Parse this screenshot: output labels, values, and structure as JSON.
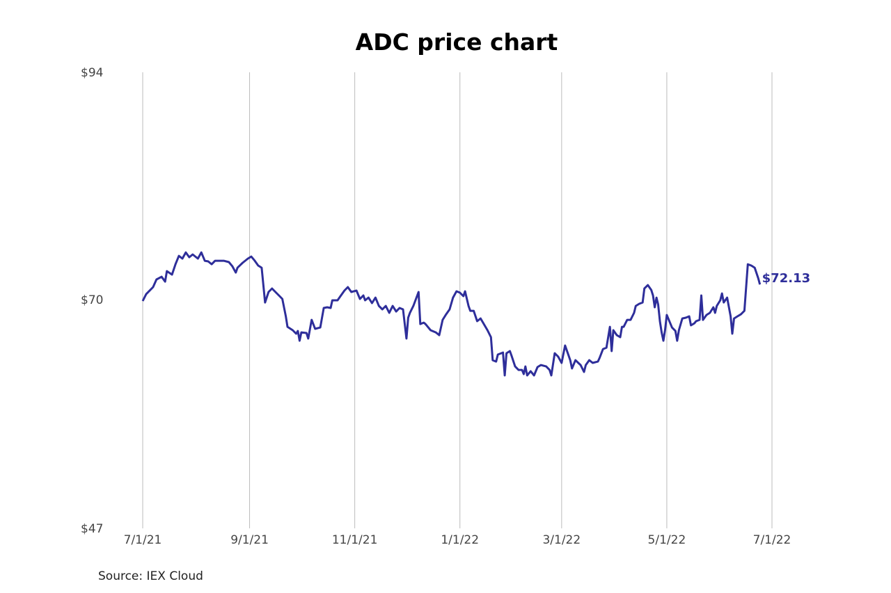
{
  "chart_data": {
    "type": "line",
    "title": "ADC price chart",
    "source": "Source: IEX Cloud",
    "xlabel": "",
    "ylabel": "",
    "x_unit": "days since 7/1/21",
    "xlim": [
      0,
      365
    ],
    "ylim": [
      47,
      94
    ],
    "grid": "vertical",
    "y_ticks": [
      {
        "value": 94,
        "label": "$94"
      },
      {
        "value": 70,
        "label": "$70"
      },
      {
        "value": 47,
        "label": "$47"
      }
    ],
    "x_ticks": [
      {
        "value": 0,
        "label": "7/1/21"
      },
      {
        "value": 62,
        "label": "9/1/21"
      },
      {
        "value": 123,
        "label": "11/1/21"
      },
      {
        "value": 184,
        "label": "1/1/22"
      },
      {
        "value": 243,
        "label": "3/1/22"
      },
      {
        "value": 304,
        "label": "5/1/22"
      },
      {
        "value": 365,
        "label": "7/1/22"
      }
    ],
    "line_color": "#2e2e9a",
    "grid_color": "#bbbbbb",
    "last_value_label": "$72.13",
    "series": [
      {
        "name": "ADC",
        "points": [
          [
            0,
            70.43
          ],
          [
            2,
            71.14
          ],
          [
            6,
            71.86
          ],
          [
            8,
            72.65
          ],
          [
            11,
            72.93
          ],
          [
            13,
            72.43
          ],
          [
            14,
            73.51
          ],
          [
            17,
            73.15
          ],
          [
            19,
            74.22
          ],
          [
            21,
            75.08
          ],
          [
            23,
            74.8
          ],
          [
            25,
            75.44
          ],
          [
            27,
            74.94
          ],
          [
            29,
            75.23
          ],
          [
            32,
            74.8
          ],
          [
            34,
            75.44
          ],
          [
            36,
            74.58
          ],
          [
            38,
            74.51
          ],
          [
            40,
            74.22
          ],
          [
            42,
            74.58
          ],
          [
            45,
            74.58
          ],
          [
            47,
            74.58
          ],
          [
            50,
            74.44
          ],
          [
            52,
            74.01
          ],
          [
            54,
            73.36
          ],
          [
            55,
            73.86
          ],
          [
            58,
            74.37
          ],
          [
            61,
            74.8
          ],
          [
            63,
            75.01
          ],
          [
            65,
            74.58
          ],
          [
            67,
            74.08
          ],
          [
            69,
            73.86
          ],
          [
            71,
            70.28
          ],
          [
            73,
            71.36
          ],
          [
            75,
            71.72
          ],
          [
            77,
            71.36
          ],
          [
            79,
            71.0
          ],
          [
            81,
            70.64
          ],
          [
            83,
            68.85
          ],
          [
            84,
            67.77
          ],
          [
            87,
            67.42
          ],
          [
            89,
            67.06
          ],
          [
            90,
            67.34
          ],
          [
            91,
            66.34
          ],
          [
            92,
            67.2
          ],
          [
            95,
            67.13
          ],
          [
            96,
            66.56
          ],
          [
            98,
            68.49
          ],
          [
            100,
            67.56
          ],
          [
            103,
            67.7
          ],
          [
            105,
            69.71
          ],
          [
            107,
            69.78
          ],
          [
            109,
            69.71
          ],
          [
            110,
            70.5
          ],
          [
            113,
            70.5
          ],
          [
            115,
            71.0
          ],
          [
            117,
            71.5
          ],
          [
            119,
            71.86
          ],
          [
            121,
            71.36
          ],
          [
            124,
            71.5
          ],
          [
            126,
            70.64
          ],
          [
            128,
            71.0
          ],
          [
            129,
            70.5
          ],
          [
            131,
            70.78
          ],
          [
            133,
            70.21
          ],
          [
            135,
            70.78
          ],
          [
            137,
            69.92
          ],
          [
            139,
            69.57
          ],
          [
            141,
            69.92
          ],
          [
            143,
            69.21
          ],
          [
            145,
            69.92
          ],
          [
            147,
            69.35
          ],
          [
            149,
            69.71
          ],
          [
            151,
            69.57
          ],
          [
            153,
            66.56
          ],
          [
            154,
            68.71
          ],
          [
            155,
            69.21
          ],
          [
            157,
            69.92
          ],
          [
            160,
            71.36
          ],
          [
            161,
            68.06
          ],
          [
            163,
            68.2
          ],
          [
            164,
            68.06
          ],
          [
            167,
            67.42
          ],
          [
            170,
            67.2
          ],
          [
            172,
            66.91
          ],
          [
            174,
            68.49
          ],
          [
            176,
            69.06
          ],
          [
            178,
            69.57
          ],
          [
            180,
            70.78
          ],
          [
            182,
            71.43
          ],
          [
            184,
            71.29
          ],
          [
            186,
            70.93
          ],
          [
            187,
            71.43
          ],
          [
            189,
            69.92
          ],
          [
            190,
            69.42
          ],
          [
            192,
            69.42
          ],
          [
            194,
            68.35
          ],
          [
            196,
            68.63
          ],
          [
            200,
            67.42
          ],
          [
            202,
            66.7
          ],
          [
            203,
            64.33
          ],
          [
            205,
            64.19
          ],
          [
            206,
            64.91
          ],
          [
            209,
            65.12
          ],
          [
            210,
            62.76
          ],
          [
            211,
            65.05
          ],
          [
            213,
            65.27
          ],
          [
            214,
            64.77
          ],
          [
            216,
            63.69
          ],
          [
            218,
            63.33
          ],
          [
            220,
            63.33
          ],
          [
            221,
            62.9
          ],
          [
            222,
            63.69
          ],
          [
            223,
            62.76
          ],
          [
            225,
            63.19
          ],
          [
            227,
            62.76
          ],
          [
            229,
            63.62
          ],
          [
            231,
            63.83
          ],
          [
            234,
            63.69
          ],
          [
            236,
            63.33
          ],
          [
            237,
            62.76
          ],
          [
            239,
            65.05
          ],
          [
            241,
            64.69
          ],
          [
            243,
            64.05
          ],
          [
            245,
            65.84
          ],
          [
            248,
            64.33
          ],
          [
            249,
            63.48
          ],
          [
            251,
            64.33
          ],
          [
            254,
            63.83
          ],
          [
            256,
            63.12
          ],
          [
            257,
            63.83
          ],
          [
            259,
            64.33
          ],
          [
            261,
            64.05
          ],
          [
            264,
            64.19
          ],
          [
            265,
            64.55
          ],
          [
            267,
            65.48
          ],
          [
            269,
            65.62
          ],
          [
            271,
            67.77
          ],
          [
            272,
            65.27
          ],
          [
            273,
            67.42
          ],
          [
            275,
            66.91
          ],
          [
            277,
            66.7
          ],
          [
            278,
            67.77
          ],
          [
            279,
            67.77
          ],
          [
            281,
            68.49
          ],
          [
            283,
            68.49
          ],
          [
            285,
            69.21
          ],
          [
            286,
            69.92
          ],
          [
            288,
            70.14
          ],
          [
            290,
            70.28
          ],
          [
            291,
            71.72
          ],
          [
            293,
            72.07
          ],
          [
            295,
            71.57
          ],
          [
            296,
            71.0
          ],
          [
            297,
            69.78
          ],
          [
            298,
            70.78
          ],
          [
            299,
            70.07
          ],
          [
            300,
            68.35
          ],
          [
            301,
            67.2
          ],
          [
            302,
            66.34
          ],
          [
            303,
            67.42
          ],
          [
            304,
            68.99
          ],
          [
            306,
            68.13
          ],
          [
            307,
            67.7
          ],
          [
            309,
            67.34
          ],
          [
            310,
            66.34
          ],
          [
            311,
            67.42
          ],
          [
            313,
            68.63
          ],
          [
            315,
            68.71
          ],
          [
            317,
            68.85
          ],
          [
            318,
            67.92
          ],
          [
            320,
            68.13
          ],
          [
            321,
            68.35
          ],
          [
            323,
            68.49
          ],
          [
            324,
            71.0
          ],
          [
            325,
            68.49
          ],
          [
            327,
            68.99
          ],
          [
            329,
            69.21
          ],
          [
            331,
            69.78
          ],
          [
            332,
            69.21
          ],
          [
            333,
            69.92
          ],
          [
            335,
            70.5
          ],
          [
            336,
            71.21
          ],
          [
            337,
            70.28
          ],
          [
            339,
            70.78
          ],
          [
            341,
            68.85
          ],
          [
            342,
            67.06
          ],
          [
            343,
            68.63
          ],
          [
            345,
            68.85
          ],
          [
            347,
            69.06
          ],
          [
            349,
            69.42
          ],
          [
            351,
            74.22
          ],
          [
            353,
            74.08
          ],
          [
            355,
            73.86
          ],
          [
            357,
            72.79
          ],
          [
            358,
            72.13
          ]
        ]
      }
    ]
  }
}
